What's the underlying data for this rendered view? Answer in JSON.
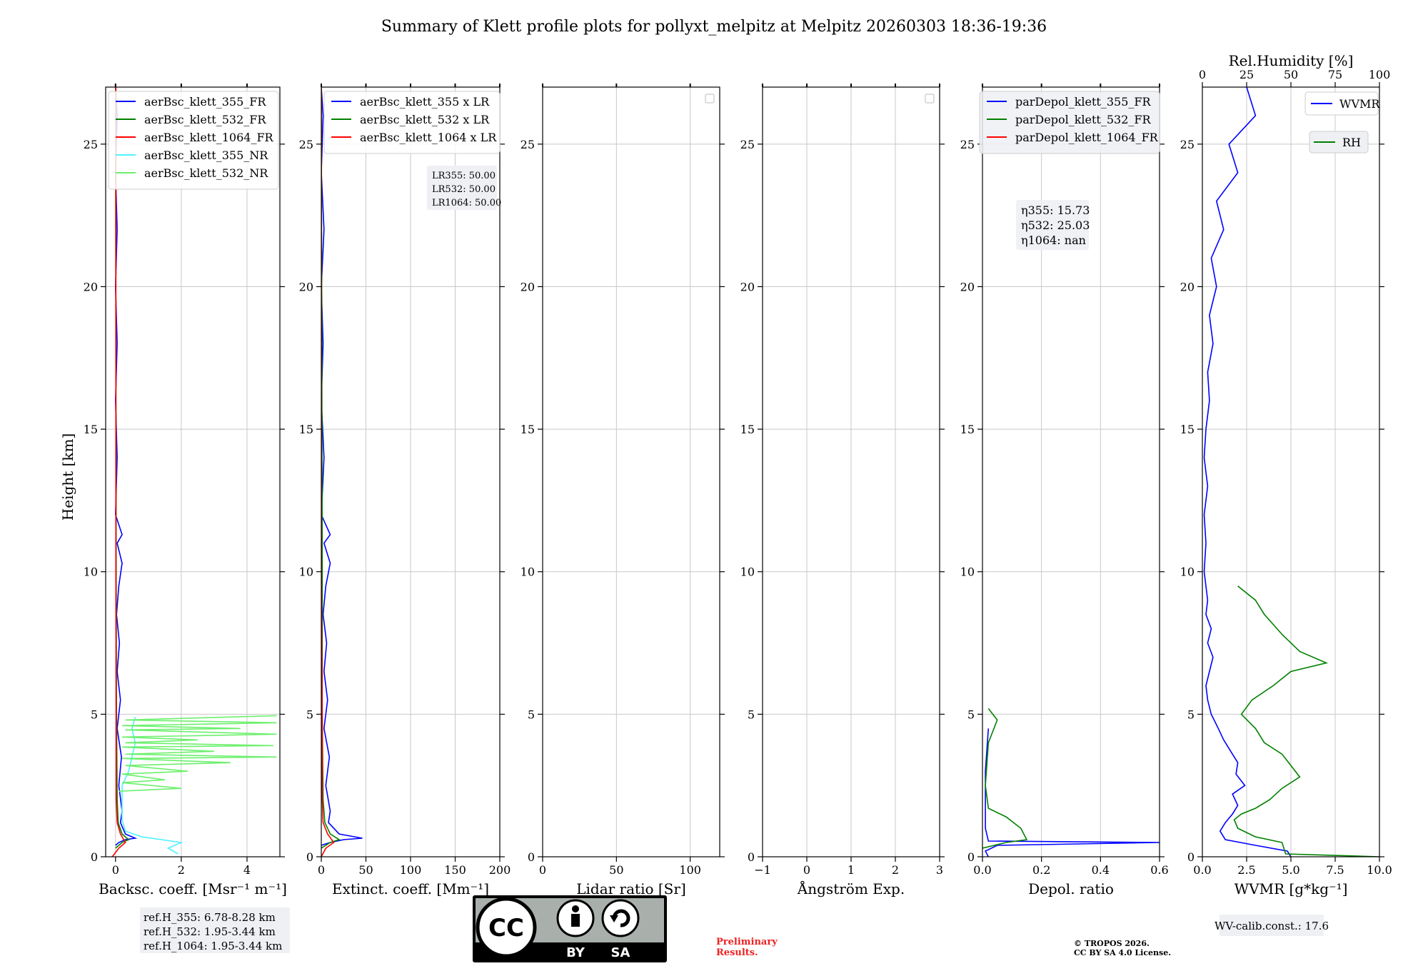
{
  "title": "Summary of Klett profile plots for pollyxt_melpitz at Melpitz 20260303 18:36-19:36",
  "ylabel": "Height [km]",
  "ylim": [
    0,
    27
  ],
  "yticks": [
    0,
    5,
    10,
    15,
    20,
    25
  ],
  "colors": {
    "blue": "#0000ff",
    "green": "#008000",
    "red": "#ff0000",
    "cyan": "#4ff2ff",
    "lightgreen": "#6cf06c",
    "grid": "#c8c8c8"
  },
  "chart_data": [
    {
      "type": "line",
      "id": "backscatter",
      "xlabel": "Backsc. coeff. [Msr⁻¹ m⁻¹]",
      "xlim": [
        -0.3,
        5
      ],
      "xticks": [
        0,
        2,
        4
      ],
      "legend": [
        "aerBsc_klett_355_FR",
        "aerBsc_klett_532_FR",
        "aerBsc_klett_1064_FR",
        "aerBsc_klett_355_NR",
        "aerBsc_klett_532_NR"
      ],
      "series": [
        {
          "name": "aerBsc_klett_355_FR",
          "color": "blue",
          "points": [
            [
              0,
              0.4
            ],
            [
              0.1,
              0.5
            ],
            [
              0.3,
              0.6
            ],
            [
              0.6,
              0.65
            ],
            [
              0.3,
              0.8
            ],
            [
              0.15,
              1.2
            ],
            [
              0.2,
              1.6
            ],
            [
              0.1,
              2.5
            ],
            [
              0.18,
              3.5
            ],
            [
              0.05,
              4.5
            ],
            [
              0.15,
              5.5
            ],
            [
              0.05,
              6.5
            ],
            [
              0.12,
              7.5
            ],
            [
              0.03,
              8.5
            ],
            [
              0.1,
              9.5
            ],
            [
              0.2,
              10.3
            ],
            [
              0.05,
              11
            ],
            [
              0.2,
              11.3
            ],
            [
              0,
              12
            ],
            [
              0.05,
              14
            ],
            [
              0,
              16
            ],
            [
              0.05,
              18
            ],
            [
              0,
              20
            ],
            [
              0.05,
              22
            ],
            [
              0,
              24
            ],
            [
              0.05,
              26
            ],
            [
              0,
              27
            ]
          ]
        },
        {
          "name": "aerBsc_klett_532_FR",
          "color": "green",
          "points": [
            [
              0,
              0.3
            ],
            [
              0.2,
              0.5
            ],
            [
              0.4,
              0.6
            ],
            [
              0.2,
              0.8
            ],
            [
              0.08,
              1.2
            ],
            [
              0.05,
              2
            ],
            [
              0.03,
              5
            ],
            [
              0.02,
              10
            ],
            [
              0,
              27
            ]
          ]
        },
        {
          "name": "aerBsc_klett_1064_FR",
          "color": "red",
          "points": [
            [
              -0.1,
              0
            ],
            [
              0.1,
              0.3
            ],
            [
              0.3,
              0.5
            ],
            [
              0.15,
              0.8
            ],
            [
              0.05,
              1.2
            ],
            [
              0.02,
              2
            ],
            [
              0.02,
              5
            ],
            [
              0.01,
              10
            ],
            [
              0.01,
              27
            ]
          ]
        },
        {
          "name": "aerBsc_klett_355_NR",
          "color": "cyan",
          "points": [
            [
              1.9,
              0.1
            ],
            [
              1.6,
              0.3
            ],
            [
              2.0,
              0.5
            ],
            [
              0.8,
              0.7
            ],
            [
              0.3,
              0.9
            ],
            [
              0.2,
              1.3
            ],
            [
              0.2,
              2.5
            ],
            [
              0.4,
              3.0
            ],
            [
              0.5,
              3.5
            ],
            [
              0.6,
              4.0
            ],
            [
              0.5,
              4.5
            ],
            [
              0.6,
              4.9
            ]
          ]
        },
        {
          "name": "aerBsc_klett_532_NR",
          "color": "lightgreen",
          "points": [
            [
              0.1,
              2.3
            ],
            [
              2.0,
              2.4
            ],
            [
              0.2,
              2.6
            ],
            [
              1.5,
              2.7
            ],
            [
              0.2,
              2.9
            ],
            [
              2.2,
              3.0
            ],
            [
              0.3,
              3.2
            ],
            [
              3.5,
              3.3
            ],
            [
              0.2,
              3.45
            ],
            [
              4.9,
              3.5
            ],
            [
              0.3,
              3.6
            ],
            [
              3.0,
              3.7
            ],
            [
              0.2,
              3.85
            ],
            [
              4.8,
              3.9
            ],
            [
              0.3,
              4.0
            ],
            [
              2.5,
              4.1
            ],
            [
              0.2,
              4.2
            ],
            [
              4.9,
              4.3
            ],
            [
              0.3,
              4.45
            ],
            [
              3.8,
              4.5
            ],
            [
              0.2,
              4.6
            ],
            [
              4.9,
              4.7
            ],
            [
              0.3,
              4.8
            ],
            [
              4.9,
              4.95
            ]
          ]
        }
      ]
    },
    {
      "type": "line",
      "id": "extinction",
      "xlabel": "Extinct. coeff. [Mm⁻¹]",
      "xlim": [
        0,
        200
      ],
      "xticks": [
        0,
        50,
        100,
        150,
        200
      ],
      "legend": [
        "aerBsc_klett_355 x LR",
        "aerBsc_klett_532 x LR",
        "aerBsc_klett_1064 x LR"
      ],
      "annotation": [
        "LR355: 50.00",
        "LR532: 50.00",
        "LR1064: 50.00"
      ],
      "series": [
        {
          "name": "aerBsc_klett_355 x LR",
          "color": "blue",
          "points": [
            [
              0,
              0.4
            ],
            [
              10,
              0.5
            ],
            [
              25,
              0.6
            ],
            [
              46,
              0.65
            ],
            [
              20,
              0.8
            ],
            [
              8,
              1.2
            ],
            [
              10,
              1.6
            ],
            [
              5,
              2.5
            ],
            [
              9,
              3.5
            ],
            [
              3,
              4.5
            ],
            [
              7,
              5.5
            ],
            [
              3,
              6.5
            ],
            [
              6,
              7.5
            ],
            [
              2,
              8.5
            ],
            [
              5,
              9.5
            ],
            [
              10,
              10.3
            ],
            [
              3,
              11
            ],
            [
              10,
              11.3
            ],
            [
              0,
              12
            ],
            [
              3,
              14
            ],
            [
              0,
              16
            ],
            [
              2,
              18
            ],
            [
              0,
              20
            ],
            [
              3,
              22
            ],
            [
              0,
              24
            ],
            [
              2,
              26
            ],
            [
              0,
              27
            ]
          ]
        },
        {
          "name": "aerBsc_klett_532 x LR",
          "color": "green",
          "points": [
            [
              0,
              0.3
            ],
            [
              10,
              0.5
            ],
            [
              20,
              0.6
            ],
            [
              10,
              0.8
            ],
            [
              4,
              1.2
            ],
            [
              2,
              2
            ],
            [
              1,
              5
            ],
            [
              1,
              10
            ],
            [
              0,
              27
            ]
          ]
        },
        {
          "name": "aerBsc_klett_1064 x LR",
          "color": "red",
          "points": [
            [
              0,
              0
            ],
            [
              5,
              0.3
            ],
            [
              14,
              0.5
            ],
            [
              7,
              0.8
            ],
            [
              2,
              1.2
            ],
            [
              1,
              2
            ],
            [
              1,
              5
            ],
            [
              0,
              10
            ],
            [
              0,
              27
            ]
          ]
        }
      ]
    },
    {
      "type": "line",
      "id": "lidar-ratio",
      "xlabel": "Lidar ratio [Sr]",
      "xlim": [
        0,
        120
      ],
      "xticks": [
        0,
        50,
        100
      ],
      "series": []
    },
    {
      "type": "line",
      "id": "angstrom",
      "xlabel": "Ångström Exp.",
      "xlim": [
        -1,
        3
      ],
      "xticks": [
        -1,
        0,
        1,
        2,
        3
      ],
      "series": []
    },
    {
      "type": "line",
      "id": "depol",
      "xlabel": "Depol. ratio",
      "xlim": [
        0,
        0.6
      ],
      "xticks": [
        0.0,
        0.2,
        0.4,
        0.6
      ],
      "legend": [
        "parDepol_klett_355_FR",
        "parDepol_klett_532_FR",
        "parDepol_klett_1064_FR"
      ],
      "annotation": [
        "η355: 15.73",
        "η532: 25.03",
        "η1064: nan"
      ],
      "series": [
        {
          "name": "parDepol_klett_355_FR",
          "color": "blue",
          "points": [
            [
              0.02,
              0
            ],
            [
              0.01,
              0.2
            ],
            [
              0.05,
              0.4
            ],
            [
              0.6,
              0.5
            ],
            [
              0.02,
              0.55
            ],
            [
              0.01,
              1
            ],
            [
              0.01,
              3
            ],
            [
              0.02,
              4.5
            ]
          ]
        },
        {
          "name": "parDepol_klett_532_FR",
          "color": "green",
          "points": [
            [
              0,
              0.3
            ],
            [
              0.08,
              0.5
            ],
            [
              0.15,
              0.6
            ],
            [
              0.13,
              1.0
            ],
            [
              0.08,
              1.4
            ],
            [
              0.02,
              1.7
            ],
            [
              0.01,
              2.5
            ],
            [
              0.02,
              4.0
            ],
            [
              0.05,
              4.8
            ],
            [
              0.02,
              5.2
            ]
          ]
        },
        {
          "name": "parDepol_klett_1064_FR",
          "color": "red",
          "points": []
        }
      ]
    },
    {
      "type": "line",
      "id": "wvmr",
      "xlabel": "WVMR [g*kg⁻¹]",
      "xlim": [
        0,
        10
      ],
      "xticks": [
        0.0,
        2.5,
        5.0,
        7.5,
        10.0
      ],
      "x2label": "Rel.Humidity [%]",
      "x2lim": [
        0,
        100
      ],
      "x2ticks": [
        0,
        25,
        50,
        75,
        100
      ],
      "legend": [
        "WVMR",
        "RH"
      ],
      "annotation": [
        "WV-calib.const.: 17.6"
      ],
      "series": [
        {
          "name": "WVMR",
          "color": "blue",
          "axis": "x",
          "points": [
            [
              5.0,
              0
            ],
            [
              4.8,
              0.2
            ],
            [
              3.0,
              0.4
            ],
            [
              1.3,
              0.6
            ],
            [
              1.0,
              0.9
            ],
            [
              1.3,
              1.2
            ],
            [
              1.7,
              1.5
            ],
            [
              2.0,
              1.8
            ],
            [
              1.7,
              2.2
            ],
            [
              2.4,
              2.5
            ],
            [
              1.9,
              2.9
            ],
            [
              2.0,
              3.3
            ],
            [
              1.6,
              3.7
            ],
            [
              1.2,
              4.1
            ],
            [
              0.9,
              4.5
            ],
            [
              0.5,
              5.0
            ],
            [
              0.3,
              5.5
            ],
            [
              0.2,
              6.0
            ],
            [
              0.4,
              6.5
            ],
            [
              0.6,
              7.0
            ],
            [
              0.3,
              7.5
            ],
            [
              0.5,
              8.0
            ],
            [
              0.2,
              8.5
            ],
            [
              0.3,
              9.0
            ],
            [
              0.1,
              10.0
            ],
            [
              0.2,
              11
            ],
            [
              0.1,
              12
            ],
            [
              0.3,
              13
            ],
            [
              0.1,
              14
            ],
            [
              0.2,
              15
            ],
            [
              0.4,
              16
            ],
            [
              0.3,
              17
            ],
            [
              0.6,
              18
            ],
            [
              0.4,
              19
            ],
            [
              0.8,
              20
            ],
            [
              0.5,
              21
            ],
            [
              1.2,
              22
            ],
            [
              0.8,
              23
            ],
            [
              2.0,
              24
            ],
            [
              1.5,
              25
            ],
            [
              3.0,
              26
            ],
            [
              2.5,
              27
            ]
          ]
        },
        {
          "name": "RH",
          "color": "green",
          "axis": "x2",
          "points": [
            [
              100,
              0
            ],
            [
              47,
              0.1
            ],
            [
              45,
              0.5
            ],
            [
              30,
              0.7
            ],
            [
              20,
              1.0
            ],
            [
              18,
              1.3
            ],
            [
              22,
              1.5
            ],
            [
              30,
              1.7
            ],
            [
              38,
              2.0
            ],
            [
              45,
              2.4
            ],
            [
              55,
              2.8
            ],
            [
              50,
              3.2
            ],
            [
              45,
              3.6
            ],
            [
              35,
              4.0
            ],
            [
              30,
              4.5
            ],
            [
              22,
              5.0
            ],
            [
              28,
              5.5
            ],
            [
              40,
              6.0
            ],
            [
              50,
              6.5
            ],
            [
              70,
              6.8
            ],
            [
              55,
              7.2
            ],
            [
              45,
              7.8
            ],
            [
              35,
              8.5
            ],
            [
              30,
              9.0
            ],
            [
              20,
              9.5
            ]
          ]
        }
      ]
    }
  ],
  "refbox": [
    "ref.H_355: 6.78-8.28 km",
    "ref.H_532: 1.95-3.44 km",
    "ref.H_1064: 1.95-3.44 km"
  ],
  "license_badge": {
    "cc": "CC",
    "by": "BY",
    "sa": "SA"
  },
  "preliminary": [
    "Preliminary",
    "Results."
  ],
  "copyright": [
    "© TROPOS 2026.",
    "CC BY SA 4.0 License."
  ]
}
